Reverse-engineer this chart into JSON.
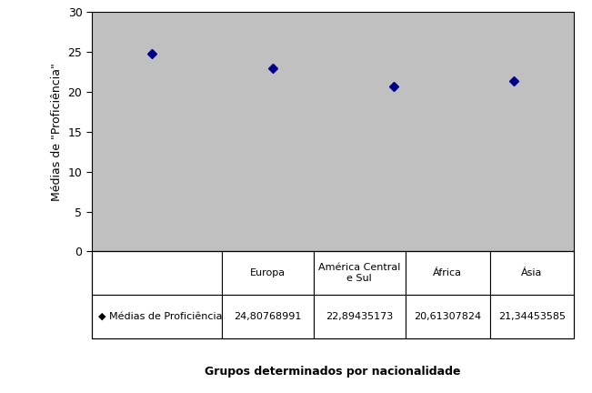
{
  "categories": [
    "Europa",
    "América Central\ne Sul",
    "África",
    "Ásia"
  ],
  "values": [
    24.80768991,
    22.89435173,
    20.61307824,
    21.34453585
  ],
  "display_values": [
    "24,80768991",
    "22,89435173",
    "20,61307824",
    "21,34453585"
  ],
  "ylabel": "Médias de \"Proficiência\"",
  "xlabel": "Grupos determinados por nacionalidade",
  "legend_label": "◆ Médias de Proficiência",
  "ylim": [
    0,
    30
  ],
  "yticks": [
    0,
    5,
    10,
    15,
    20,
    25,
    30
  ],
  "plot_bg_color": "#c0c0c0",
  "fig_bg_color": "#ffffff",
  "marker_color": "#00008b",
  "marker": "D",
  "marker_size": 5
}
